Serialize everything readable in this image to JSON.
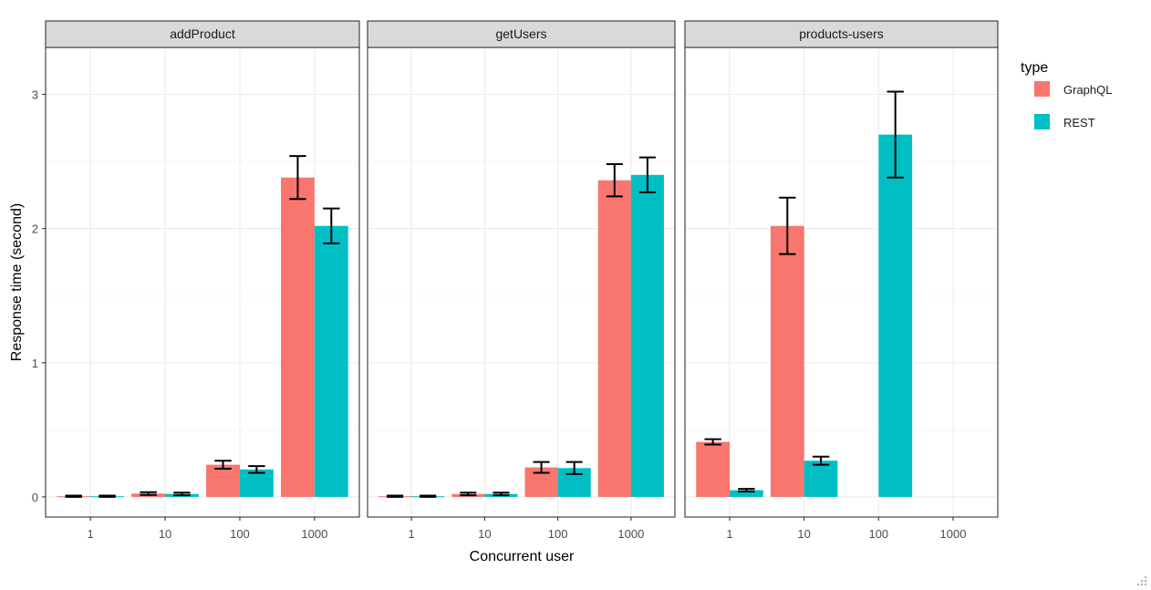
{
  "chart_data": {
    "type": "bar",
    "facets": [
      "addProduct",
      "getUsers",
      "products-users"
    ],
    "categories": [
      "1",
      "10",
      "100",
      "1000"
    ],
    "xlabel": "Concurrent user",
    "ylabel": "Response time (second)",
    "ylim": [
      -0.15,
      3.35
    ],
    "yticks": [
      0,
      1,
      2,
      3
    ],
    "grid": true,
    "legend": {
      "title": "type",
      "position": "right",
      "items": [
        {
          "name": "GraphQL",
          "color": "#F8766D"
        },
        {
          "name": "REST",
          "color": "#00BFC4"
        }
      ]
    },
    "panels": [
      {
        "facet": "addProduct",
        "series": [
          {
            "name": "GraphQL",
            "values": [
              0.005,
              0.025,
              0.24,
              2.38
            ],
            "err_low": [
              0.0,
              0.015,
              0.21,
              2.22
            ],
            "err_high": [
              0.01,
              0.035,
              0.27,
              2.54
            ]
          },
          {
            "name": "REST",
            "values": [
              0.005,
              0.022,
              0.205,
              2.02
            ],
            "err_low": [
              0.0,
              0.012,
              0.18,
              1.89
            ],
            "err_high": [
              0.01,
              0.032,
              0.23,
              2.15
            ]
          }
        ]
      },
      {
        "facet": "getUsers",
        "series": [
          {
            "name": "GraphQL",
            "values": [
              0.005,
              0.022,
              0.22,
              2.36
            ],
            "err_low": [
              0.0,
              0.012,
              0.18,
              2.24
            ],
            "err_high": [
              0.01,
              0.032,
              0.26,
              2.48
            ]
          },
          {
            "name": "REST",
            "values": [
              0.005,
              0.022,
              0.215,
              2.4
            ],
            "err_low": [
              0.0,
              0.012,
              0.17,
              2.27
            ],
            "err_high": [
              0.01,
              0.032,
              0.26,
              2.53
            ]
          }
        ]
      },
      {
        "facet": "products-users",
        "series": [
          {
            "name": "GraphQL",
            "values": [
              0.41,
              2.02,
              null,
              null
            ],
            "err_low": [
              0.39,
              1.81,
              null,
              null
            ],
            "err_high": [
              0.43,
              2.23,
              null,
              null
            ]
          },
          {
            "name": "REST",
            "values": [
              0.05,
              0.27,
              2.7,
              null
            ],
            "err_low": [
              0.04,
              0.24,
              2.38,
              null
            ],
            "err_high": [
              0.06,
              0.3,
              3.02,
              null
            ]
          }
        ]
      }
    ]
  }
}
